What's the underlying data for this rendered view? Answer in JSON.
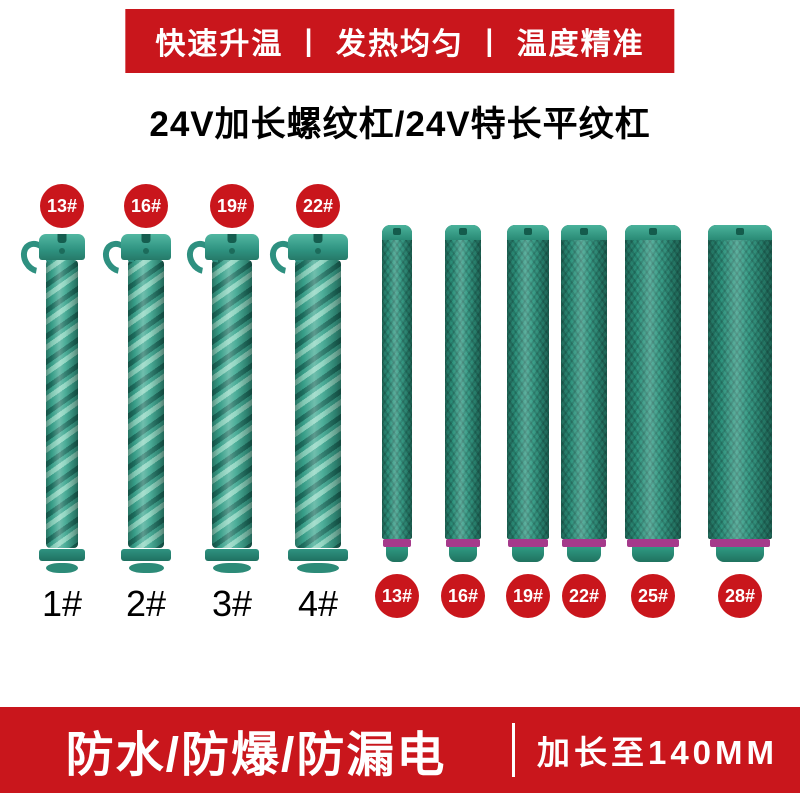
{
  "top_banner": {
    "text": "快速升温 丨 发热均匀 丨 温度精准"
  },
  "title": "24V加长螺纹杠/24V特长平纹杠",
  "spiral_rods": [
    {
      "badge": "13#",
      "label": "1#"
    },
    {
      "badge": "16#",
      "label": "2#"
    },
    {
      "badge": "19#",
      "label": "3#"
    },
    {
      "badge": "22#",
      "label": "4#"
    }
  ],
  "plain_rods": [
    {
      "badge": "13#"
    },
    {
      "badge": "16#"
    },
    {
      "badge": "19#"
    },
    {
      "badge": "22#"
    },
    {
      "badge": "25#"
    },
    {
      "badge": "28#"
    }
  ],
  "bottom_banner": {
    "left_text": "防水/防爆/防漏电",
    "right_text": "加长至140MM"
  },
  "colors": {
    "red": "#c9161c",
    "teal": "#35a28d",
    "teal_dark": "#27816e",
    "purple": "#a53a8b"
  }
}
